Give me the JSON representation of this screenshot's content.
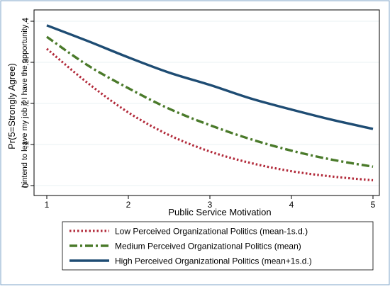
{
  "chart_data": {
    "type": "line",
    "title": "",
    "xlabel": "Public Service Motivation",
    "ylabel": "Pr(5=Strongly Agree)",
    "ylabel2": "I intend to leave my job if I have the opportunity",
    "xlim": [
      1,
      5
    ],
    "ylim": [
      0,
      0.4
    ],
    "x_ticks": [
      1,
      2,
      3,
      4,
      5
    ],
    "y_ticks": [
      0,
      0.1,
      0.2,
      0.3,
      0.4
    ],
    "y_tick_labels": [
      "0",
      ".1",
      ".2",
      ".3",
      ".4"
    ],
    "grid": true,
    "legend_position": "bottom",
    "x": [
      1,
      1.5,
      2,
      2.5,
      3,
      3.5,
      4,
      4.5,
      5
    ],
    "series": [
      {
        "name": "Low Perceived Organizational Politics (mean-1s.d.)",
        "color": "#b22a3a",
        "style": "dotted",
        "values": [
          0.333,
          0.25,
          0.178,
          0.123,
          0.083,
          0.055,
          0.035,
          0.022,
          0.013
        ]
      },
      {
        "name": "Medium Perceived Organizational Politics (mean)",
        "color": "#4a7a2a",
        "style": "dashdot",
        "values": [
          0.362,
          0.293,
          0.237,
          0.187,
          0.147,
          0.113,
          0.085,
          0.063,
          0.046
        ]
      },
      {
        "name": "High Perceived Organizational Politics (mean+1s.d.)",
        "color": "#1e4c73",
        "style": "solid",
        "values": [
          0.39,
          0.352,
          0.312,
          0.275,
          0.245,
          0.212,
          0.185,
          0.16,
          0.138
        ]
      }
    ]
  }
}
